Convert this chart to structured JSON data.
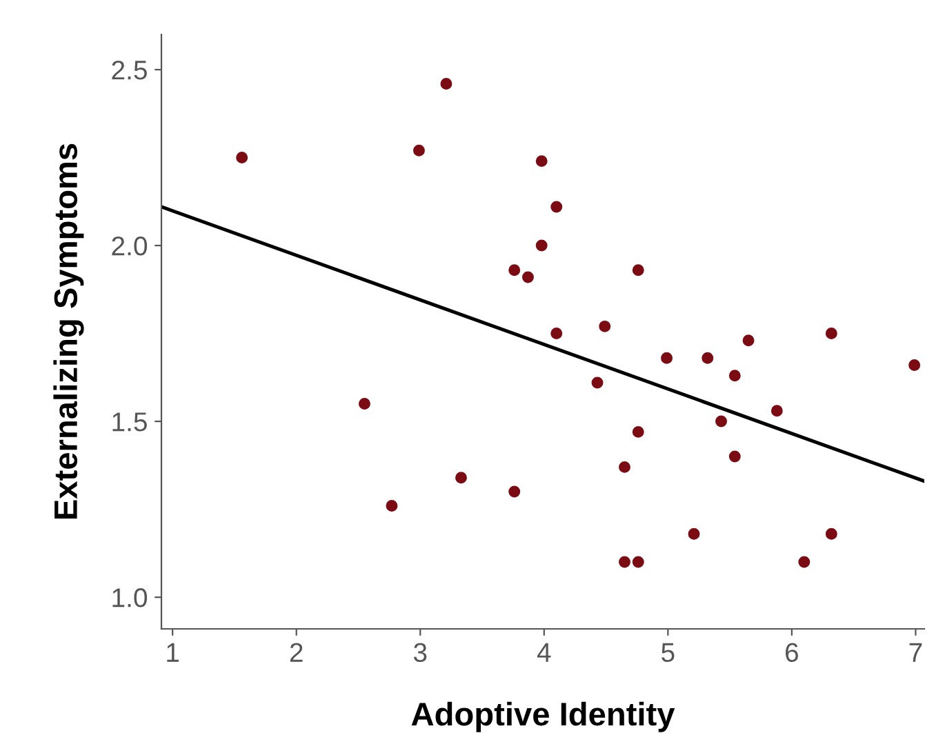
{
  "chart_data": {
    "type": "scatter",
    "xlabel": "Adoptive Identity",
    "ylabel": "Externalizing Symptoms",
    "xlim": [
      0.91,
      7.07
    ],
    "ylim": [
      0.91,
      2.6
    ],
    "xticks": [
      1,
      2,
      3,
      4,
      5,
      6,
      7
    ],
    "yticks": [
      {
        "value": 1.0,
        "label": "1.0"
      },
      {
        "value": 1.5,
        "label": "1.5"
      },
      {
        "value": 2.0,
        "label": "2.0"
      },
      {
        "value": 2.5,
        "label": "2.5"
      }
    ],
    "grid": false,
    "series": [
      {
        "marker": "circle",
        "color": "#7b0c14",
        "x": [
          1.56,
          2.55,
          2.77,
          2.99,
          3.21,
          3.33,
          3.76,
          3.76,
          3.87,
          3.98,
          3.98,
          4.1,
          4.1,
          4.43,
          4.49,
          4.65,
          4.65,
          4.76,
          4.76,
          4.76,
          4.99,
          5.21,
          5.32,
          5.43,
          5.54,
          5.54,
          5.65,
          5.88,
          6.1,
          6.32,
          6.32,
          6.99
        ],
        "values": [
          2.25,
          1.55,
          1.26,
          2.27,
          2.46,
          1.34,
          1.93,
          1.3,
          1.91,
          2.24,
          2.0,
          2.11,
          1.75,
          1.61,
          1.77,
          1.37,
          1.1,
          1.93,
          1.47,
          1.1,
          1.68,
          1.18,
          1.68,
          1.5,
          1.63,
          1.4,
          1.73,
          1.53,
          1.1,
          1.18,
          1.75,
          1.66
        ]
      },
      {
        "type": "line",
        "color": "#000000",
        "x": [
          0.91,
          7.07
        ],
        "values": [
          2.11,
          1.33
        ],
        "line_style": "solid"
      }
    ]
  }
}
